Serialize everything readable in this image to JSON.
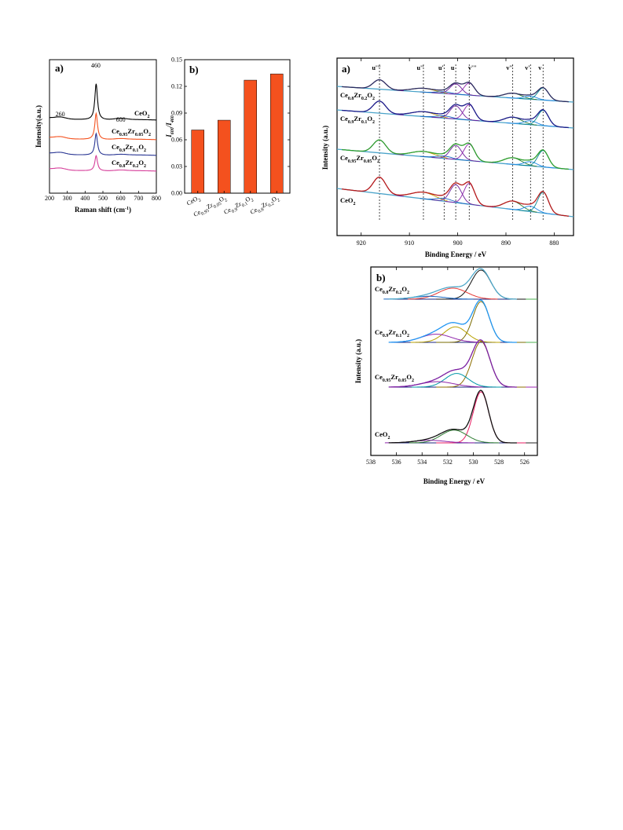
{
  "colors": {
    "raman": [
      "#000000",
      "#f4511e",
      "#283593",
      "#d63f9a"
    ],
    "bar": "#f4511e",
    "xps_raw": "#1a1a1a"
  },
  "chart_data": [
    {
      "id": "raman",
      "panel_label": "a)",
      "type": "line",
      "xlabel": "Raman shift (cm",
      "xlabel_sup": "-1",
      "xlabel_end": ")",
      "ylabel": "Intensity(a.u.)",
      "xlim": [
        200,
        800
      ],
      "xticks": [
        "200",
        "300",
        "400",
        "500",
        "600",
        "700",
        "800"
      ],
      "peak_labels": [
        "260",
        "460",
        "600"
      ],
      "series": [
        {
          "name": "CeO",
          "sub": "2",
          "offset": 3,
          "peak": 1.0
        },
        {
          "name": "Ce",
          "sub": "0.95",
          "mid": "Zr",
          "sub2": "0.05",
          "end": "O",
          "sub3": "2",
          "offset": 2,
          "peak": 0.72
        },
        {
          "name": "Ce",
          "sub": "0.9",
          "mid": "Zr",
          "sub2": "0.1",
          "end": "O",
          "sub3": "2",
          "offset": 1,
          "peak": 0.6
        },
        {
          "name": "Ce",
          "sub": "0.8",
          "mid": "Zr",
          "sub2": "0.2",
          "end": "O",
          "sub3": "2",
          "offset": 0,
          "peak": 0.42
        }
      ]
    },
    {
      "id": "ratio",
      "panel_label": "b)",
      "type": "bar",
      "ylabel_main": "I",
      "ylabel_sub1": "600",
      "ylabel_mid": "/I",
      "ylabel_sub2": "460",
      "ylim": [
        0.0,
        0.15
      ],
      "yticks": [
        "0.00",
        "0.03",
        "0.06",
        "0.09",
        "0.12",
        "0.15"
      ],
      "categories": [
        {
          "a": "CeO",
          "b": "2",
          "c": "",
          "d": "",
          "e": "",
          "f": ""
        },
        {
          "a": "Ce",
          "b": "0.95",
          "c": "Zr",
          "d": "0.05",
          "e": "O",
          "f": "2"
        },
        {
          "a": "Ce",
          "b": "0.9",
          "c": "Zr",
          "d": "0.1",
          "e": "O",
          "f": "2"
        },
        {
          "a": "Ce",
          "b": "0.8",
          "c": "Zr",
          "d": "0.2",
          "e": "O",
          "f": "2"
        }
      ],
      "values": [
        0.071,
        0.082,
        0.127,
        0.134
      ]
    },
    {
      "id": "xps-ce3d",
      "panel_label": "a)",
      "type": "line",
      "xlabel": "Binding Energy / eV",
      "ylabel": "Intensity (a.u.)",
      "xlim": [
        925,
        876
      ],
      "xticks": [
        "920",
        "910",
        "900",
        "890",
        "880"
      ],
      "peak_labels": [
        "u'''",
        "u''",
        "u'",
        "u",
        "v'''",
        "v''",
        "v'",
        "v"
      ],
      "peak_positions": [
        916.2,
        907.1,
        902.8,
        900.4,
        897.6,
        888.6,
        884.9,
        882.3
      ],
      "samples": [
        {
          "a": "Ce",
          "b": "0.8",
          "c": "Zr",
          "d": "0.2",
          "e": "O",
          "f": "2"
        },
        {
          "a": "Ce",
          "b": "0.9",
          "c": "Zr",
          "d": "0.1",
          "e": "O",
          "f": "2"
        },
        {
          "a": "Ce",
          "b": "0.95",
          "c": "Zr",
          "d": "0.05",
          "e": "O",
          "f": "2"
        },
        {
          "a": "CeO",
          "b": "2",
          "c": "",
          "d": "",
          "e": "",
          "f": ""
        }
      ]
    },
    {
      "id": "xps-o1s",
      "panel_label": "b)",
      "type": "line",
      "xlabel": "Binding Energy / eV",
      "ylabel": "Intensity (a.u.)",
      "xlim": [
        538,
        525
      ],
      "xticks": [
        "538",
        "536",
        "534",
        "532",
        "530",
        "528",
        "526"
      ],
      "samples": [
        {
          "a": "Ce",
          "b": "0.8",
          "c": "Zr",
          "d": "0.2",
          "e": "O",
          "f": "2"
        },
        {
          "a": "Ce",
          "b": "0.9",
          "c": "Zr",
          "d": "0.1",
          "e": "O",
          "f": "2"
        },
        {
          "a": "Ce",
          "b": "0.95",
          "c": "Zr",
          "d": "0.05",
          "e": "O",
          "f": "2"
        },
        {
          "a": "CeO",
          "b": "2",
          "c": "",
          "d": "",
          "e": "",
          "f": ""
        }
      ]
    }
  ]
}
